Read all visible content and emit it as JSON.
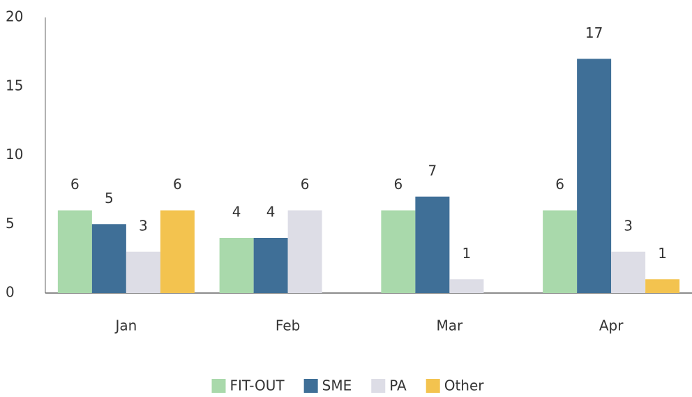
{
  "chart_data": {
    "type": "bar",
    "categories": [
      "Jan",
      "Feb",
      "Mar",
      "Apr"
    ],
    "series": [
      {
        "name": "FIT-OUT",
        "color": "#a9d9ab",
        "values": [
          6,
          4,
          6,
          6
        ]
      },
      {
        "name": "SME",
        "color": "#3f6f97",
        "values": [
          5,
          4,
          7,
          17
        ]
      },
      {
        "name": "PA",
        "color": "#dddde6",
        "values": [
          3,
          6,
          1,
          3
        ]
      },
      {
        "name": "Other",
        "color": "#f3c34f",
        "values": [
          6,
          null,
          null,
          1
        ]
      }
    ],
    "ylim": [
      0,
      20
    ],
    "yticks": [
      0,
      5,
      10,
      15,
      20
    ],
    "grid": false,
    "legend": "bottom"
  }
}
